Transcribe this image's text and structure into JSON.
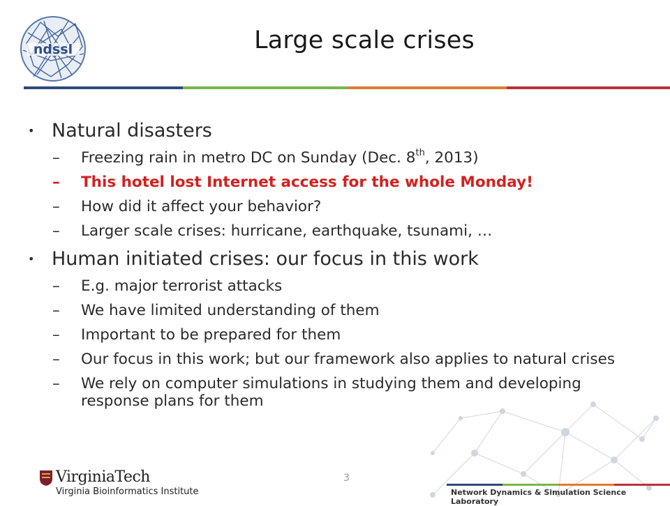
{
  "slide": {
    "title": "Large scale crises",
    "page_number": "3"
  },
  "logo": {
    "text": "ndssl",
    "icon": "ndssl-logo-icon"
  },
  "bullets": [
    {
      "text": "Natural disasters",
      "subs": [
        {
          "pre": "Freezing rain in metro DC on Sunday (Dec. 8",
          "sup": "th",
          "post": ", 2013)"
        },
        {
          "text": "This hotel lost Internet access for the whole Monday!",
          "highlight": true
        },
        {
          "text": "How did it affect your behavior?"
        },
        {
          "text": "Larger scale crises: hurricane, earthquake, tsunami, …"
        }
      ]
    },
    {
      "text": "Human initiated crises: our focus in this work",
      "subs": [
        {
          "text": "E.g. major terrorist attacks"
        },
        {
          "text": "We have limited understanding of them"
        },
        {
          "text": "Important to be prepared for them"
        },
        {
          "text": "Our focus in this work; but our framework also applies to natural crises"
        },
        {
          "text": "We rely on computer simulations in studying them and developing response plans for them"
        }
      ]
    }
  ],
  "footer": {
    "university": "VirginiaTech",
    "institute": "Virginia Bioinformatics Institute",
    "lab": "Network Dynamics & Simulation Science Laboratory"
  },
  "colors": {
    "stripe": [
      "#2e4a7a",
      "#7ab648",
      "#e07a2e",
      "#b8323c"
    ],
    "highlight": "#d42020",
    "vt_maroon": "#7a1f2b"
  }
}
